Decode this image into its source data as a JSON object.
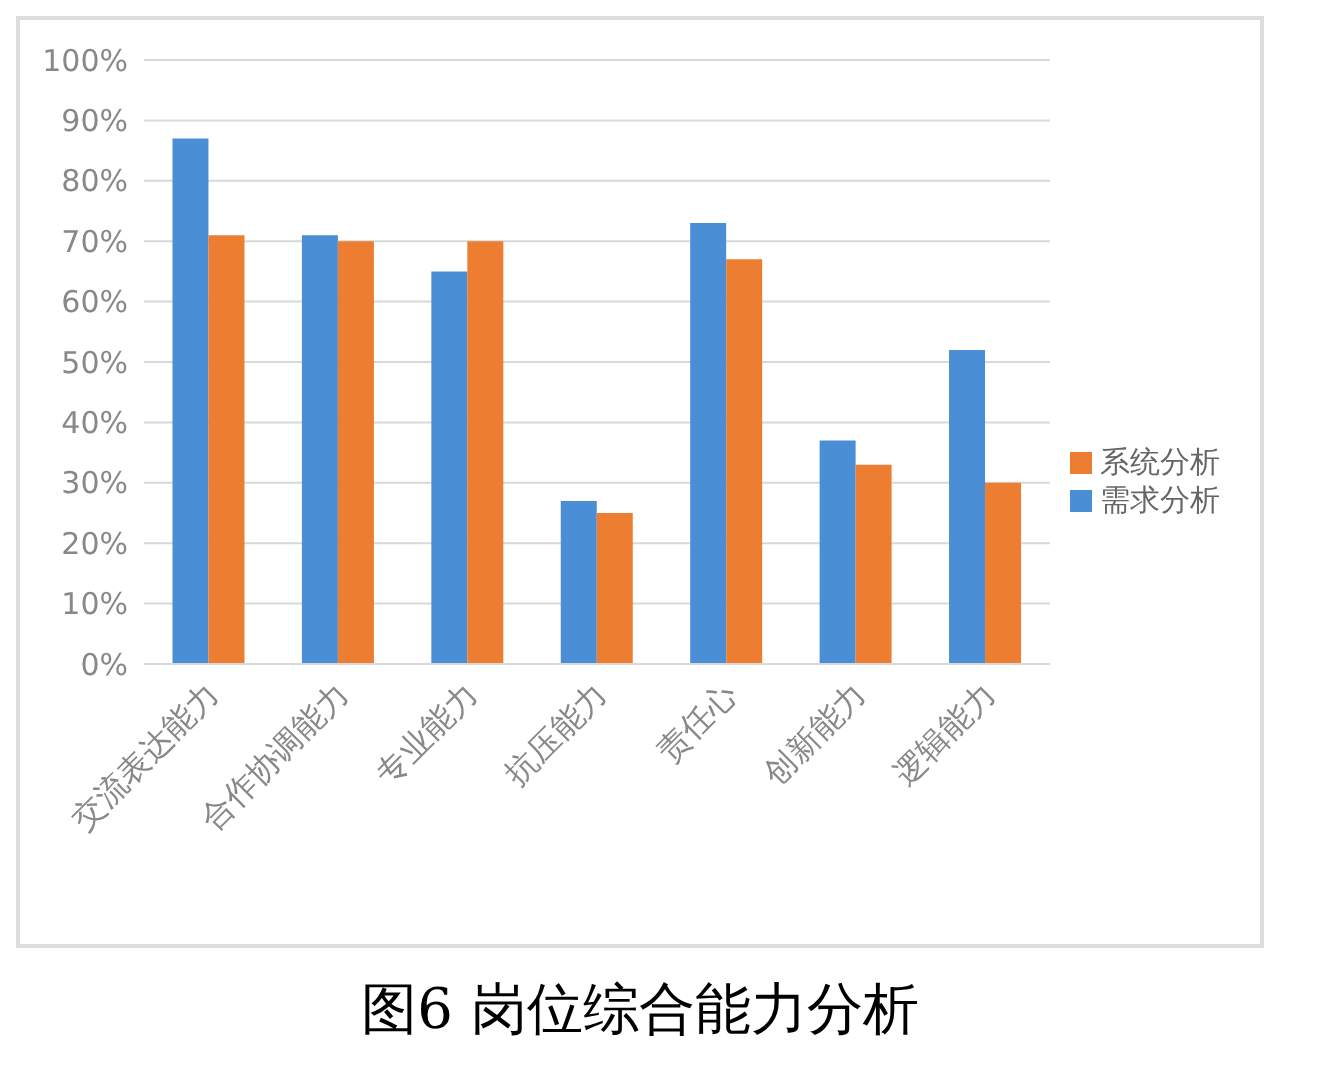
{
  "chart_data": {
    "type": "bar",
    "title": "图6  岗位综合能力分析",
    "categories": [
      "交流表达能力",
      "合作协调能力",
      "专业能力",
      "抗压能力",
      "责任心",
      "创新能力",
      "逻辑能力"
    ],
    "series": [
      {
        "name": "需求分析",
        "color": "#4a8fd6",
        "values": [
          87,
          71,
          65,
          27,
          73,
          37,
          52
        ]
      },
      {
        "name": "系统分析",
        "color": "#ed7d31",
        "values": [
          71,
          70,
          70,
          25,
          67,
          33,
          30
        ]
      }
    ],
    "ylim": [
      0,
      100
    ],
    "yticks": [
      {
        "value": 0,
        "label": "0%"
      },
      {
        "value": 10,
        "label": "10%"
      },
      {
        "value": 20,
        "label": "20%"
      },
      {
        "value": 30,
        "label": "30%"
      },
      {
        "value": 40,
        "label": "40%"
      },
      {
        "value": 50,
        "label": "50%"
      },
      {
        "value": 60,
        "label": "60%"
      },
      {
        "value": 70,
        "label": "70%"
      },
      {
        "value": 80,
        "label": "80%"
      },
      {
        "value": 90,
        "label": "90%"
      },
      {
        "value": 100,
        "label": "100%"
      }
    ],
    "grid": "y",
    "legend": "right"
  }
}
